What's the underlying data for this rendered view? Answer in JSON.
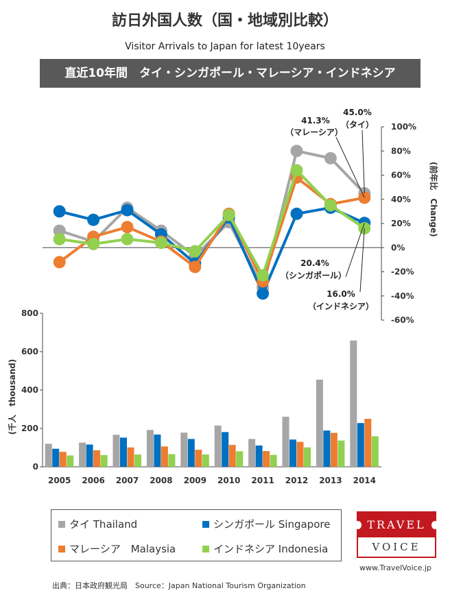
{
  "header": {
    "title": "訪日外国人数（国・地域別比較）",
    "subtitle": "Visitor Arrivals to Japan for latest 10years",
    "banner": "直近10年間　タイ・シンガポール・マレーシア・インドネシア"
  },
  "chart_data": {
    "type": "bar+line",
    "categories": [
      "2005",
      "2006",
      "2007",
      "2008",
      "2009",
      "2010",
      "2011",
      "2012",
      "2013",
      "2014"
    ],
    "colors": {
      "thailand": "#a6a6a6",
      "singapore": "#0070c0",
      "malaysia": "#ed7d31",
      "indonesia": "#92d050"
    },
    "bar_chart": {
      "ylabel": "(千人　thousand)",
      "ylim": [
        0,
        800
      ],
      "yticks": [
        "0",
        "200",
        "400",
        "600",
        "800"
      ],
      "series": [
        {
          "key": "thailand",
          "values": [
            120,
            126,
            167,
            192,
            178,
            215,
            145,
            261,
            454,
            658
          ]
        },
        {
          "key": "singapore",
          "values": [
            94,
            116,
            152,
            168,
            145,
            181,
            111,
            142,
            189,
            228
          ]
        },
        {
          "key": "malaysia",
          "values": [
            78,
            86,
            101,
            106,
            89,
            114,
            82,
            130,
            177,
            250
          ]
        },
        {
          "key": "indonesia",
          "values": [
            59,
            61,
            64,
            66,
            64,
            81,
            62,
            101,
            137,
            159
          ]
        }
      ]
    },
    "line_chart": {
      "ylabel": "(前年比　Change)",
      "ylim": [
        -60,
        100
      ],
      "yticks": [
        "100%",
        "80%",
        "60%",
        "40%",
        "20%",
        "0%",
        "-20%",
        "-40%",
        "-60%"
      ],
      "series": [
        {
          "key": "thailand",
          "values": [
            14,
            5,
            33,
            14,
            -7,
            21,
            -33,
            80,
            74,
            45
          ]
        },
        {
          "key": "singapore",
          "values": [
            30,
            23,
            31,
            11,
            -13,
            25,
            -38,
            28,
            33,
            20.4
          ]
        },
        {
          "key": "malaysia",
          "values": [
            -12,
            9,
            17,
            5,
            -16,
            28,
            -28,
            58,
            36,
            41.3
          ]
        },
        {
          "key": "indonesia",
          "values": [
            7,
            3,
            7,
            4,
            -3,
            27,
            -23,
            64,
            35,
            16
          ]
        }
      ]
    },
    "annotations": [
      {
        "value": "41.3%",
        "label": "（マレーシア）"
      },
      {
        "value": "45.0%",
        "label": "（タイ）"
      },
      {
        "value": "20.4%",
        "label": "（シンガポール）"
      },
      {
        "value": "16.0%",
        "label": "（インドネシア）"
      }
    ]
  },
  "legend": {
    "thailand": "タイ Thailand",
    "singapore": "シンガポール Singapore",
    "malaysia": "マレーシア　Malaysia",
    "indonesia": "インドネシア Indonesia"
  },
  "logo": {
    "top": "TRAVEL",
    "bottom": "VOICE"
  },
  "footer": {
    "site": "www.TravelVoice.jp",
    "source": "出典：日本政府観光局　Source：Japan  National Tourism  Organization"
  }
}
